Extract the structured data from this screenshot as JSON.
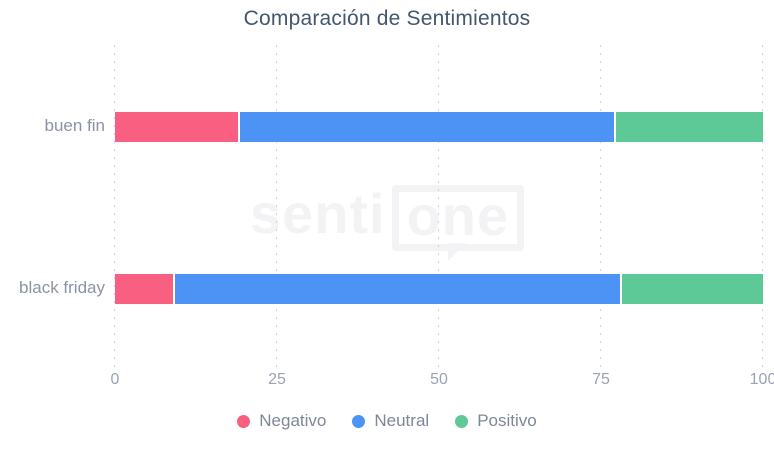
{
  "chart_data": {
    "type": "bar",
    "orientation": "horizontal",
    "stacked": true,
    "title": "Comparación de Sentimientos",
    "categories": [
      "buen fin",
      "black friday"
    ],
    "series": [
      {
        "name": "Negativo",
        "color": "#f95f80",
        "values": [
          19,
          9
        ]
      },
      {
        "name": "Neutral",
        "color": "#4d93f6",
        "values": [
          58,
          69
        ]
      },
      {
        "name": "Positivo",
        "color": "#5cc997",
        "values": [
          23,
          22
        ]
      }
    ],
    "x_ticks": [
      "0",
      "25",
      "50",
      "75",
      "100"
    ],
    "x_tick_values": [
      0,
      25,
      50,
      75,
      100
    ],
    "xlim": [
      0,
      100
    ],
    "grid": "dotted-vertical",
    "legend_position": "bottom"
  },
  "watermark": {
    "text_left": "senti",
    "text_boxed": "one"
  },
  "colors": {
    "title": "#44576e",
    "category_label": "#8b93a6",
    "tick_label": "#9aa3b5",
    "legend_label": "#7e8798",
    "gridline": "#d2d2d6",
    "watermark": "#f3f3f5"
  }
}
